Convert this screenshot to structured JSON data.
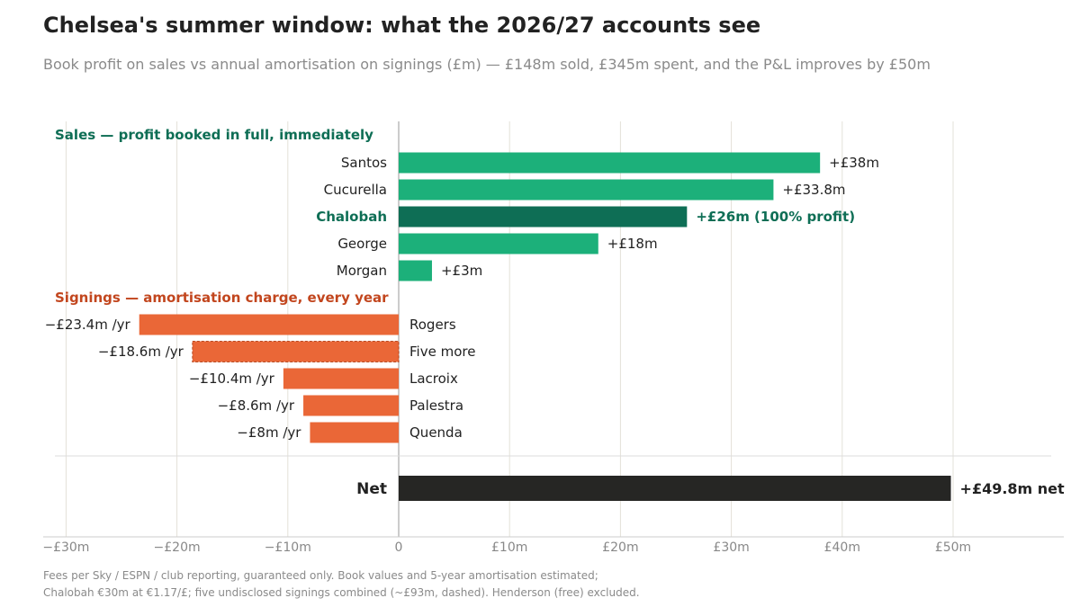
{
  "title": "Chelsea's summer window: what the 2026/27 accounts see",
  "subtitle": "Book profit on sales vs annual amortisation on signings (£m) — £148m sold, £345m spent, and the P&L improves by £50m",
  "footnote": {
    "line1": "Fees per Sky / ESPN / club reporting, guaranteed only. Book values and 5-year amortisation estimated;",
    "line2": "Chalobah €30m at €1.17/£; five undisclosed signings combined (~£93m, dashed). Henderson (free) excluded."
  },
  "colors": {
    "sale": "#1cb07a",
    "sale_highlight": "#0e6e55",
    "sale_group_label": "#0e6e55",
    "signing": "#ea6737",
    "signing_group_label": "#c2461e",
    "net": "#262624",
    "grid": "#e3e0d8",
    "zero_line": "#bbbbbb",
    "axis_tick": "#888888"
  },
  "chart_data": {
    "type": "bar",
    "orientation": "horizontal",
    "xlim": [
      -32.5,
      60
    ],
    "x_ticks": [
      {
        "value": -30,
        "label": "−£30m"
      },
      {
        "value": -20,
        "label": "−£20m"
      },
      {
        "value": -10,
        "label": "−£10m"
      },
      {
        "value": 0,
        "label": "0"
      },
      {
        "value": 10,
        "label": "£10m"
      },
      {
        "value": 20,
        "label": "£20m"
      },
      {
        "value": 30,
        "label": "£30m"
      },
      {
        "value": 40,
        "label": "£40m"
      },
      {
        "value": 50,
        "label": "£50m"
      }
    ],
    "grid": true,
    "groups": [
      {
        "name": "Sales — profit booked in full, immediately",
        "kind": "sale",
        "bars": [
          {
            "label": "Santos",
            "value": 38,
            "value_label": "+£38m"
          },
          {
            "label": "Cucurella",
            "value": 33.8,
            "value_label": "+£33.8m"
          },
          {
            "label": "Chalobah",
            "value": 26,
            "value_label": "+£26m  (100% profit)",
            "highlight": true
          },
          {
            "label": "George",
            "value": 18,
            "value_label": "+£18m"
          },
          {
            "label": "Morgan",
            "value": 3,
            "value_label": "+£3m"
          }
        ]
      },
      {
        "name": "Signings — amortisation charge, every year",
        "kind": "signing",
        "bars": [
          {
            "label": "Rogers",
            "value": -23.4,
            "value_label": "−£23.4m /yr"
          },
          {
            "label": "Five more",
            "value": -18.6,
            "value_label": "−£18.6m /yr",
            "dashed": true
          },
          {
            "label": "Lacroix",
            "value": -10.4,
            "value_label": "−£10.4m /yr"
          },
          {
            "label": "Palestra",
            "value": -8.6,
            "value_label": "−£8.6m /yr"
          },
          {
            "label": "Quenda",
            "value": -8,
            "value_label": "−£8m /yr"
          }
        ]
      }
    ],
    "net": {
      "label": "Net",
      "value": 49.8,
      "value_label": "+£49.8m net"
    }
  }
}
